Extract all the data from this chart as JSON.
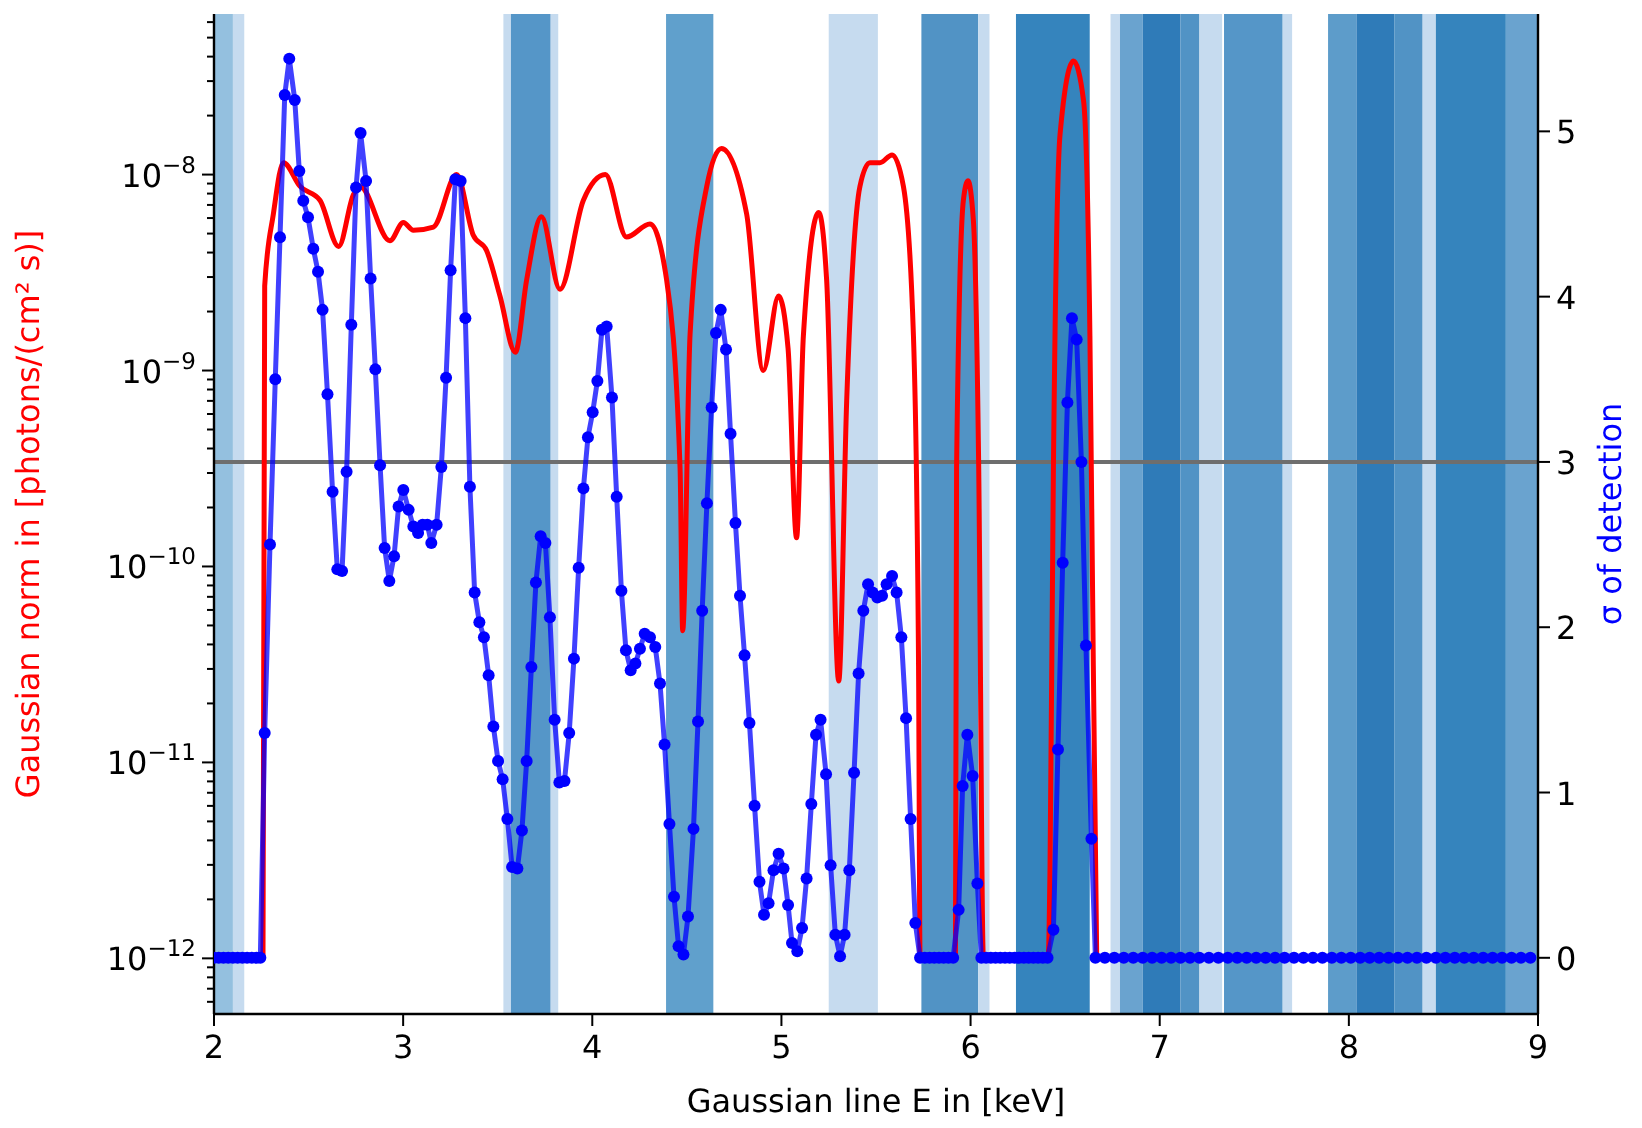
{
  "chart_data": {
    "type": "line",
    "xlabel": "Gaussian line E in [keV]",
    "ylabel": "Gaussian norm in [photons/(cm² s)]",
    "y2label": "σ of detection",
    "log": true,
    "xlim": [
      2,
      9
    ],
    "xticks": [
      2,
      3,
      4,
      5,
      6,
      7,
      8,
      9
    ],
    "ylim": [
      5.2e-13,
      6.6e-08
    ],
    "yticks": [
      {
        "value": 6e-13,
        "label": null
      },
      {
        "value": 7e-13,
        "label": null
      },
      {
        "value": 8e-13,
        "label": null
      },
      {
        "value": 9e-13,
        "label": null
      },
      {
        "value": 1e-12,
        "label": "10$^{−12}$"
      },
      {
        "value": 2e-12,
        "label": null
      },
      {
        "value": 3e-12,
        "label": null
      },
      {
        "value": 4e-12,
        "label": null
      },
      {
        "value": 5e-12,
        "label": null
      },
      {
        "value": 6e-12,
        "label": null
      },
      {
        "value": 7e-12,
        "label": null
      },
      {
        "value": 8e-12,
        "label": null
      },
      {
        "value": 9e-12,
        "label": null
      },
      {
        "value": 1e-11,
        "label": "10$^{−11}$"
      },
      {
        "value": 2e-11,
        "label": null
      },
      {
        "value": 3e-11,
        "label": null
      },
      {
        "value": 4e-11,
        "label": null
      },
      {
        "value": 5e-11,
        "label": null
      },
      {
        "value": 6e-11,
        "label": null
      },
      {
        "value": 7e-11,
        "label": null
      },
      {
        "value": 8e-11,
        "label": null
      },
      {
        "value": 9e-11,
        "label": null
      },
      {
        "value": 1e-10,
        "label": "10$^{−10}$"
      },
      {
        "value": 2e-10,
        "label": null
      },
      {
        "value": 3e-10,
        "label": null
      },
      {
        "value": 4e-10,
        "label": null
      },
      {
        "value": 5e-10,
        "label": null
      },
      {
        "value": 6e-10,
        "label": null
      },
      {
        "value": 7e-10,
        "label": null
      },
      {
        "value": 8e-10,
        "label": null
      },
      {
        "value": 9e-10,
        "label": null
      },
      {
        "value": 1e-09,
        "label": "10$^{−9}$"
      },
      {
        "value": 2e-09,
        "label": null
      },
      {
        "value": 3e-09,
        "label": null
      },
      {
        "value": 4e-09,
        "label": null
      },
      {
        "value": 5e-09,
        "label": null
      },
      {
        "value": 6e-09,
        "label": null
      },
      {
        "value": 7e-09,
        "label": null
      },
      {
        "value": 8e-09,
        "label": null
      },
      {
        "value": 9e-09,
        "label": null
      },
      {
        "value": 1e-08,
        "label": "10$^{−8}$"
      },
      {
        "value": 2e-08,
        "label": null
      },
      {
        "value": 3e-08,
        "label": null
      },
      {
        "value": 4e-08,
        "label": null
      },
      {
        "value": 5e-08,
        "label": null
      },
      {
        "value": 6e-08,
        "label": null
      }
    ],
    "y2lim": [
      -0.34,
      5.71
    ],
    "y2ticks": [
      0,
      1,
      2,
      3,
      4,
      5
    ],
    "series": [
      {
        "color": "#ff0000",
        "marker": "none",
        "x": [
          2.259,
          2.268,
          2.314,
          2.367,
          2.455,
          2.56,
          2.659,
          2.737,
          2.772,
          2.93,
          3.001,
          3.054,
          3.16,
          3.283,
          3.371,
          3.441,
          3.512,
          3.593,
          3.653,
          3.731,
          3.829,
          3.953,
          4.069,
          4.181,
          4.305,
          4.393,
          4.464,
          4.478,
          4.517,
          4.605,
          4.683,
          4.816,
          4.904,
          4.985,
          5.035,
          5.08,
          5.116,
          5.197,
          5.239,
          5.303,
          5.345,
          5.415,
          5.468,
          5.521,
          5.585,
          5.645,
          5.698,
          5.725,
          5.733,
          5.92,
          5.926,
          5.962,
          5.986,
          6.015,
          6.043,
          6.068,
          6.41,
          6.42,
          6.438,
          6.473,
          6.544,
          6.597,
          6.631,
          6.649,
          6.667
        ],
        "values": [
          1e-12,
          2.7e-09,
          6.3e-09,
          1.15e-08,
          8.7e-09,
          7.4e-09,
          4.3e-09,
          7.9e-09,
          8.7e-09,
          4.6e-09,
          5.7e-09,
          5.2e-09,
          5.4e-09,
          1e-08,
          4.9e-09,
          4.1e-09,
          2.4e-09,
          1.24e-09,
          2.9e-09,
          6.1e-09,
          2.6e-09,
          7.4e-09,
          1e-08,
          4.8e-09,
          5.6e-09,
          2.9e-09,
          3.2e-10,
          4.7e-11,
          1.53e-09,
          8.7e-09,
          1.36e-08,
          6.3e-09,
          1e-09,
          2.4e-09,
          1.3e-09,
          1.4e-10,
          1.5e-09,
          6.4e-09,
          2.9e-09,
          2.6e-11,
          7e-10,
          8.7e-09,
          1.15e-08,
          1.15e-08,
          1.26e-08,
          8.7e-09,
          1.5e-09,
          3.1e-11,
          1e-12,
          1e-12,
          3.2e-10,
          7.4e-09,
          9.3e-09,
          5.8e-09,
          3.2e-10,
          1e-12,
          1e-12,
          2.9e-12,
          3.2e-10,
          1.6e-08,
          3.8e-08,
          2.4e-08,
          1.5e-09,
          3.1e-11,
          1e-12
        ]
      },
      {
        "color": "#0000ff",
        "marker": "circle",
        "axis": "y2",
        "x": [
          2.0,
          2.025,
          2.05,
          2.075,
          2.1,
          2.125,
          2.15,
          2.175,
          2.2,
          2.225,
          2.245,
          2.268,
          2.296,
          2.324,
          2.349,
          2.374,
          2.398,
          2.427,
          2.451,
          2.472,
          2.497,
          2.525,
          2.55,
          2.574,
          2.6,
          2.627,
          2.652,
          2.677,
          2.701,
          2.726,
          2.751,
          2.775,
          2.804,
          2.828,
          2.853,
          2.878,
          2.902,
          2.927,
          2.952,
          2.976,
          3.001,
          3.029,
          3.054,
          3.079,
          3.103,
          3.128,
          3.149,
          3.177,
          3.202,
          3.227,
          3.251,
          3.276,
          3.304,
          3.329,
          3.353,
          3.378,
          3.403,
          3.427,
          3.452,
          3.477,
          3.502,
          3.526,
          3.551,
          3.576,
          3.604,
          3.628,
          3.653,
          3.678,
          3.702,
          3.727,
          3.752,
          3.776,
          3.801,
          3.826,
          3.853,
          3.878,
          3.903,
          3.928,
          3.953,
          3.977,
          4.002,
          4.027,
          4.051,
          4.076,
          4.104,
          4.129,
          4.154,
          4.178,
          4.203,
          4.228,
          4.252,
          4.277,
          4.305,
          4.333,
          4.358,
          4.382,
          4.408,
          4.432,
          4.456,
          4.482,
          4.506,
          4.535,
          4.559,
          4.581,
          4.606,
          4.631,
          4.654,
          4.679,
          4.707,
          4.731,
          4.757,
          4.781,
          4.805,
          4.831,
          4.858,
          4.884,
          4.908,
          4.932,
          4.958,
          4.985,
          5.011,
          5.035,
          5.056,
          5.084,
          5.109,
          5.133,
          5.158,
          5.183,
          5.207,
          5.236,
          5.26,
          5.285,
          5.31,
          5.334,
          5.359,
          5.384,
          5.408,
          5.433,
          5.458,
          5.482,
          5.507,
          5.532,
          5.556,
          5.585,
          5.609,
          5.634,
          5.659,
          5.683,
          5.708,
          5.733,
          5.758,
          5.783,
          5.808,
          5.833,
          5.858,
          5.883,
          5.908,
          5.937,
          5.958,
          5.983,
          6.011,
          6.036,
          6.057,
          6.082,
          6.107,
          6.132,
          6.157,
          6.182,
          6.207,
          6.232,
          6.257,
          6.282,
          6.307,
          6.332,
          6.357,
          6.382,
          6.407,
          6.438,
          6.462,
          6.487,
          6.512,
          6.536,
          6.561,
          6.586,
          6.61,
          6.639,
          6.66,
          6.71,
          6.76,
          6.81,
          6.86,
          6.91,
          6.96,
          7.01,
          7.06,
          7.11,
          7.16,
          7.21,
          7.26,
          7.31,
          7.36,
          7.41,
          7.46,
          7.51,
          7.56,
          7.61,
          7.66,
          7.71,
          7.76,
          7.81,
          7.86,
          7.91,
          7.96,
          8.01,
          8.06,
          8.11,
          8.16,
          8.21,
          8.26,
          8.31,
          8.36,
          8.41,
          8.46,
          8.51,
          8.56,
          8.61,
          8.66,
          8.71,
          8.76,
          8.81,
          8.86,
          8.91,
          8.96
        ],
        "values": [
          0,
          0,
          0,
          0,
          0,
          0,
          0,
          0,
          0,
          0,
          0,
          1.36,
          2.5,
          3.5,
          4.36,
          5.22,
          5.44,
          5.19,
          4.76,
          4.58,
          4.48,
          4.29,
          4.15,
          3.92,
          3.41,
          2.82,
          2.35,
          2.34,
          2.94,
          3.83,
          4.66,
          4.99,
          4.7,
          4.11,
          3.56,
          2.98,
          2.48,
          2.28,
          2.43,
          2.73,
          2.83,
          2.71,
          2.61,
          2.57,
          2.62,
          2.62,
          2.51,
          2.62,
          2.97,
          3.51,
          4.16,
          4.71,
          4.7,
          3.87,
          2.85,
          2.21,
          2.03,
          1.94,
          1.71,
          1.4,
          1.19,
          1.08,
          0.84,
          0.55,
          0.54,
          0.77,
          1.19,
          1.76,
          2.27,
          2.55,
          2.51,
          2.06,
          1.44,
          1.06,
          1.07,
          1.36,
          1.81,
          2.36,
          2.84,
          3.15,
          3.3,
          3.49,
          3.8,
          3.82,
          3.39,
          2.79,
          2.22,
          1.86,
          1.74,
          1.78,
          1.87,
          1.96,
          1.94,
          1.88,
          1.66,
          1.29,
          0.81,
          0.37,
          0.07,
          0.02,
          0.25,
          0.78,
          1.43,
          2.1,
          2.75,
          3.33,
          3.78,
          3.92,
          3.68,
          3.17,
          2.63,
          2.19,
          1.83,
          1.42,
          0.92,
          0.46,
          0.26,
          0.33,
          0.53,
          0.63,
          0.54,
          0.32,
          0.09,
          0.04,
          0.18,
          0.48,
          0.93,
          1.35,
          1.44,
          1.11,
          0.56,
          0.14,
          0.01,
          0.14,
          0.53,
          1.12,
          1.72,
          2.1,
          2.26,
          2.21,
          2.18,
          2.19,
          2.26,
          2.31,
          2.21,
          1.94,
          1.45,
          0.84,
          0.21,
          0,
          0,
          0,
          0,
          0,
          0,
          0,
          0,
          0.29,
          1.04,
          1.35,
          1.1,
          0.45,
          0,
          0,
          0,
          0,
          0,
          0,
          0,
          0,
          0,
          0,
          0,
          0,
          0,
          0,
          0,
          0.17,
          1.26,
          2.39,
          3.36,
          3.87,
          3.74,
          3.0,
          1.89,
          0.72,
          0,
          0,
          0,
          0,
          0,
          0,
          0,
          0,
          0,
          0,
          0,
          0,
          0,
          0,
          0,
          0,
          0,
          0,
          0,
          0,
          0,
          0,
          0,
          0,
          0,
          0,
          0,
          0,
          0,
          0,
          0,
          0,
          0,
          0,
          0,
          0,
          0,
          0,
          0,
          0,
          0,
          0,
          0,
          0,
          0,
          0,
          0
        ]
      }
    ],
    "ref_lines": [
      {
        "axis": "y2",
        "value": 3,
        "color": "#6e6e6e"
      }
    ],
    "bands": [
      {
        "axis": "x",
        "from": 2.0,
        "to": 2.1,
        "color": "#94c0df"
      },
      {
        "axis": "x",
        "from": 2.1,
        "to": 2.16,
        "color": "#c6dbef"
      },
      {
        "axis": "x",
        "from": 3.53,
        "to": 3.57,
        "color": "#c6dbef"
      },
      {
        "axis": "x",
        "from": 3.57,
        "to": 3.78,
        "color": "#5596c8"
      },
      {
        "axis": "x",
        "from": 3.78,
        "to": 3.82,
        "color": "#c6dbef"
      },
      {
        "axis": "x",
        "from": 4.39,
        "to": 4.64,
        "color": "#60a0cc"
      },
      {
        "axis": "x",
        "from": 5.25,
        "to": 5.51,
        "color": "#c6dbef"
      },
      {
        "axis": "x",
        "from": 5.74,
        "to": 6.04,
        "color": "#5193c5"
      },
      {
        "axis": "x",
        "from": 6.04,
        "to": 6.1,
        "color": "#c6dbef"
      },
      {
        "axis": "x",
        "from": 6.24,
        "to": 6.63,
        "color": "#3584bd"
      },
      {
        "axis": "x",
        "from": 6.74,
        "to": 6.79,
        "color": "#c6dbef"
      },
      {
        "axis": "x",
        "from": 6.79,
        "to": 6.91,
        "color": "#6aa3cf"
      },
      {
        "axis": "x",
        "from": 6.91,
        "to": 7.11,
        "color": "#2f7bb8"
      },
      {
        "axis": "x",
        "from": 7.11,
        "to": 7.21,
        "color": "#5193c5"
      },
      {
        "axis": "x",
        "from": 7.21,
        "to": 7.33,
        "color": "#c6dbef"
      },
      {
        "axis": "x",
        "from": 7.34,
        "to": 7.65,
        "color": "#5596c8"
      },
      {
        "axis": "x",
        "from": 7.65,
        "to": 7.7,
        "color": "#c6dbef"
      },
      {
        "axis": "x",
        "from": 7.89,
        "to": 8.04,
        "color": "#5d9cca"
      },
      {
        "axis": "x",
        "from": 8.04,
        "to": 8.24,
        "color": "#2f7bb8"
      },
      {
        "axis": "x",
        "from": 8.24,
        "to": 8.39,
        "color": "#5193c5"
      },
      {
        "axis": "x",
        "from": 8.39,
        "to": 8.46,
        "color": "#c6dbef"
      },
      {
        "axis": "x",
        "from": 8.46,
        "to": 8.83,
        "color": "#3584bd"
      },
      {
        "axis": "x",
        "from": 8.83,
        "to": 9.0,
        "color": "#6aa3cf"
      }
    ]
  }
}
